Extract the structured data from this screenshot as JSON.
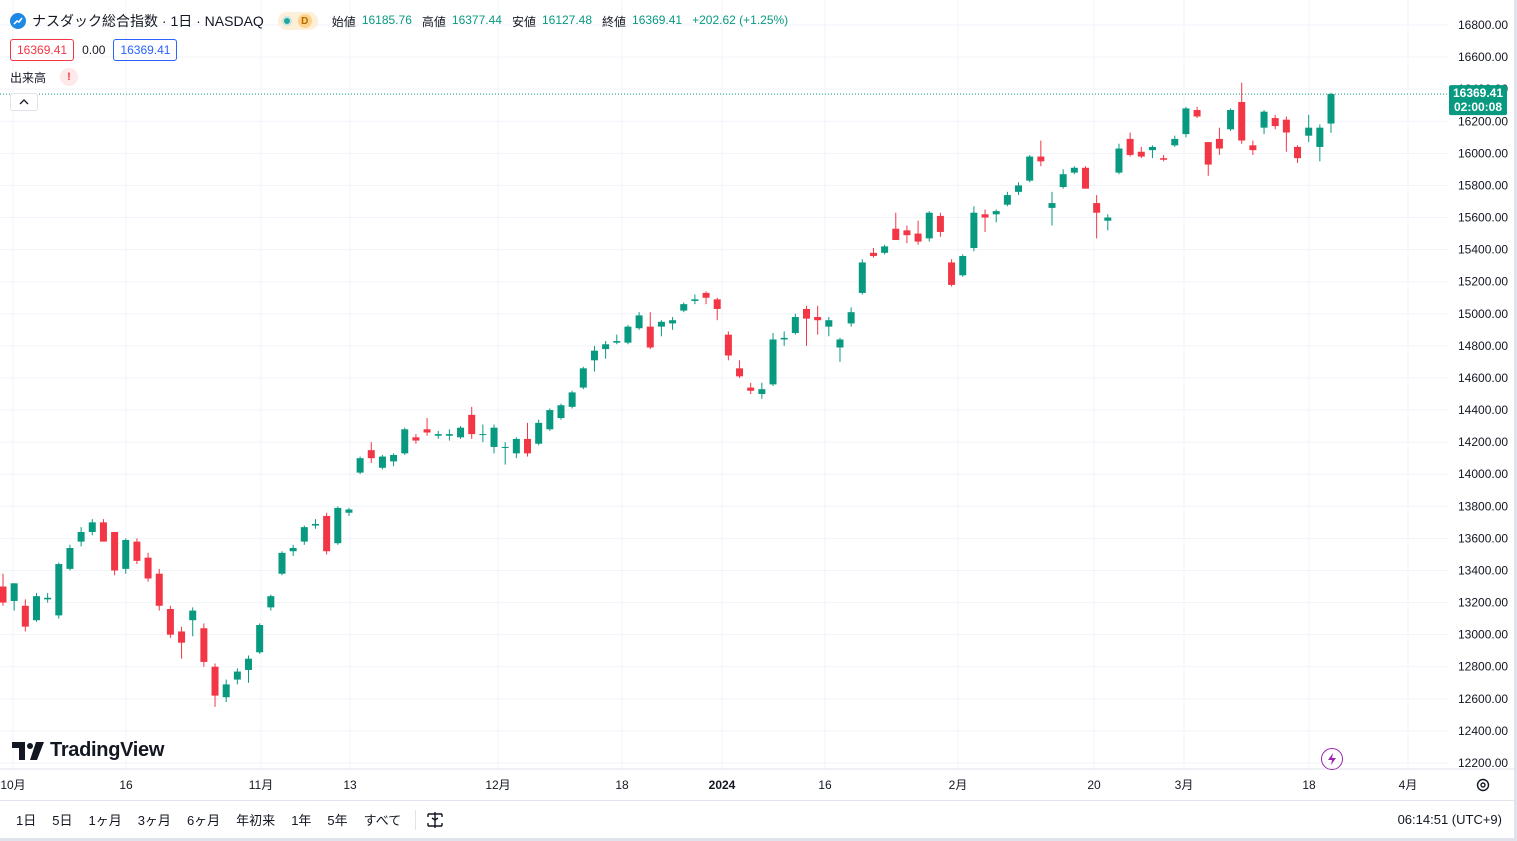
{
  "header": {
    "symbol_title": "ナスダック総合指数 · 1日 · NASDAQ",
    "status_badge": "D",
    "ohlc": {
      "open_label": "始値",
      "open": "16185.76",
      "high_label": "高値",
      "high": "16377.44",
      "low_label": "安値",
      "low": "16127.48",
      "close_label": "終値",
      "close": "16369.41",
      "change": "+202.62 (+1.25%)"
    },
    "sell_price": "16369.41",
    "spread": "0.00",
    "buy_price": "16369.41",
    "volume_label": "出来高",
    "volume_warning": "!"
  },
  "price_axis": {
    "labels": [
      "16800.00",
      "16600.00",
      "16400.00",
      "16200.00",
      "16000.00",
      "15800.00",
      "15600.00",
      "15400.00",
      "15200.00",
      "15000.00",
      "14800.00",
      "14600.00",
      "14400.00",
      "14200.00",
      "14000.00",
      "13800.00",
      "13600.00",
      "13400.00",
      "13200.00",
      "13000.00",
      "12800.00",
      "12600.00",
      "12400.00",
      "12200.00"
    ],
    "last_price": "16369.41",
    "countdown": "02:00:08"
  },
  "time_axis": {
    "labels": [
      "10月",
      "16",
      "11月",
      "13",
      "12月",
      "18",
      "2024",
      "16",
      "2月",
      "20",
      "3月",
      "18",
      "4月"
    ]
  },
  "branding": {
    "logo_text": "TradingView"
  },
  "bottom_bar": {
    "ranges": [
      "1日",
      "5日",
      "1ヶ月",
      "3ヶ月",
      "6ヶ月",
      "年初来",
      "1年",
      "5年",
      "すべて"
    ],
    "clock": "06:14:51 (UTC+9)"
  },
  "colors": {
    "up": "#089981",
    "down": "#f23645",
    "grid": "#f0f3fa",
    "last_line": "#089981"
  },
  "chart_data": {
    "type": "candlestick",
    "title": "ナスダック総合指数",
    "ylim": [
      12200,
      16800
    ],
    "candles": [
      {
        "o": 13300,
        "h": 13380,
        "l": 13180,
        "c": 13200
      },
      {
        "o": 13210,
        "h": 13320,
        "l": 13150,
        "c": 13320
      },
      {
        "o": 13180,
        "h": 13220,
        "l": 13020,
        "c": 13050
      },
      {
        "o": 13090,
        "h": 13260,
        "l": 13080,
        "c": 13240
      },
      {
        "o": 13220,
        "h": 13260,
        "l": 13200,
        "c": 13230
      },
      {
        "o": 13120,
        "h": 13450,
        "l": 13100,
        "c": 13440
      },
      {
        "o": 13410,
        "h": 13560,
        "l": 13400,
        "c": 13540
      },
      {
        "o": 13580,
        "h": 13670,
        "l": 13550,
        "c": 13640
      },
      {
        "o": 13640,
        "h": 13720,
        "l": 13620,
        "c": 13700
      },
      {
        "o": 13700,
        "h": 13720,
        "l": 13580,
        "c": 13580
      },
      {
        "o": 13640,
        "h": 13640,
        "l": 13370,
        "c": 13400
      },
      {
        "o": 13410,
        "h": 13600,
        "l": 13380,
        "c": 13590
      },
      {
        "o": 13580,
        "h": 13600,
        "l": 13440,
        "c": 13460
      },
      {
        "o": 13480,
        "h": 13510,
        "l": 13330,
        "c": 13350
      },
      {
        "o": 13380,
        "h": 13410,
        "l": 13150,
        "c": 13180
      },
      {
        "o": 13160,
        "h": 13180,
        "l": 12980,
        "c": 13000
      },
      {
        "o": 13020,
        "h": 13050,
        "l": 12850,
        "c": 12950
      },
      {
        "o": 13090,
        "h": 13170,
        "l": 12990,
        "c": 13150
      },
      {
        "o": 13040,
        "h": 13070,
        "l": 12800,
        "c": 12830
      },
      {
        "o": 12800,
        "h": 12820,
        "l": 12550,
        "c": 12620
      },
      {
        "o": 12610,
        "h": 12720,
        "l": 12580,
        "c": 12690
      },
      {
        "o": 12720,
        "h": 12790,
        "l": 12690,
        "c": 12770
      },
      {
        "o": 12780,
        "h": 12870,
        "l": 12700,
        "c": 12850
      },
      {
        "o": 12890,
        "h": 13070,
        "l": 12880,
        "c": 13060
      },
      {
        "o": 13170,
        "h": 13250,
        "l": 13150,
        "c": 13240
      },
      {
        "o": 13380,
        "h": 13520,
        "l": 13370,
        "c": 13510
      },
      {
        "o": 13520,
        "h": 13560,
        "l": 13490,
        "c": 13540
      },
      {
        "o": 13580,
        "h": 13680,
        "l": 13560,
        "c": 13670
      },
      {
        "o": 13680,
        "h": 13720,
        "l": 13660,
        "c": 13690
      },
      {
        "o": 13740,
        "h": 13760,
        "l": 13500,
        "c": 13520
      },
      {
        "o": 13570,
        "h": 13800,
        "l": 13560,
        "c": 13790
      },
      {
        "o": 13760,
        "h": 13790,
        "l": 13740,
        "c": 13780
      },
      {
        "o": 14010,
        "h": 14110,
        "l": 14000,
        "c": 14100
      },
      {
        "o": 14150,
        "h": 14200,
        "l": 14070,
        "c": 14100
      },
      {
        "o": 14040,
        "h": 14120,
        "l": 14030,
        "c": 14110
      },
      {
        "o": 14080,
        "h": 14130,
        "l": 14050,
        "c": 14120
      },
      {
        "o": 14130,
        "h": 14290,
        "l": 14120,
        "c": 14280
      },
      {
        "o": 14230,
        "h": 14250,
        "l": 14190,
        "c": 14210
      },
      {
        "o": 14280,
        "h": 14350,
        "l": 14240,
        "c": 14260
      },
      {
        "o": 14240,
        "h": 14270,
        "l": 14220,
        "c": 14250
      },
      {
        "o": 14240,
        "h": 14280,
        "l": 14210,
        "c": 14250
      },
      {
        "o": 14230,
        "h": 14300,
        "l": 14220,
        "c": 14290
      },
      {
        "o": 14370,
        "h": 14420,
        "l": 14220,
        "c": 14250
      },
      {
        "o": 14250,
        "h": 14310,
        "l": 14200,
        "c": 14250
      },
      {
        "o": 14170,
        "h": 14310,
        "l": 14130,
        "c": 14290
      },
      {
        "o": 14170,
        "h": 14200,
        "l": 14060,
        "c": 14170
      },
      {
        "o": 14130,
        "h": 14230,
        "l": 14100,
        "c": 14220
      },
      {
        "o": 14220,
        "h": 14320,
        "l": 14110,
        "c": 14130
      },
      {
        "o": 14190,
        "h": 14340,
        "l": 14180,
        "c": 14320
      },
      {
        "o": 14280,
        "h": 14410,
        "l": 14270,
        "c": 14400
      },
      {
        "o": 14350,
        "h": 14440,
        "l": 14340,
        "c": 14430
      },
      {
        "o": 14420,
        "h": 14520,
        "l": 14410,
        "c": 14510
      },
      {
        "o": 14540,
        "h": 14670,
        "l": 14530,
        "c": 14660
      },
      {
        "o": 14710,
        "h": 14800,
        "l": 14640,
        "c": 14770
      },
      {
        "o": 14780,
        "h": 14830,
        "l": 14720,
        "c": 14810
      },
      {
        "o": 14820,
        "h": 14870,
        "l": 14810,
        "c": 14830
      },
      {
        "o": 14820,
        "h": 14930,
        "l": 14810,
        "c": 14920
      },
      {
        "o": 14910,
        "h": 15010,
        "l": 14900,
        "c": 14990
      },
      {
        "o": 14920,
        "h": 15010,
        "l": 14780,
        "c": 14790
      },
      {
        "o": 14920,
        "h": 14960,
        "l": 14860,
        "c": 14950
      },
      {
        "o": 14940,
        "h": 14980,
        "l": 14900,
        "c": 14960
      },
      {
        "o": 15020,
        "h": 15070,
        "l": 15010,
        "c": 15060
      },
      {
        "o": 15080,
        "h": 15120,
        "l": 15060,
        "c": 15090
      },
      {
        "o": 15130,
        "h": 15140,
        "l": 15060,
        "c": 15100
      },
      {
        "o": 15090,
        "h": 15100,
        "l": 14960,
        "c": 15030
      },
      {
        "o": 14870,
        "h": 14890,
        "l": 14710,
        "c": 14740
      },
      {
        "o": 14660,
        "h": 14710,
        "l": 14600,
        "c": 14610
      },
      {
        "o": 14540,
        "h": 14570,
        "l": 14500,
        "c": 14520
      },
      {
        "o": 14500,
        "h": 14570,
        "l": 14470,
        "c": 14530
      },
      {
        "o": 14560,
        "h": 14880,
        "l": 14550,
        "c": 14840
      },
      {
        "o": 14840,
        "h": 14890,
        "l": 14800,
        "c": 14850
      },
      {
        "o": 14880,
        "h": 15000,
        "l": 14870,
        "c": 14980
      },
      {
        "o": 15030,
        "h": 15050,
        "l": 14800,
        "c": 14970
      },
      {
        "o": 14980,
        "h": 15050,
        "l": 14870,
        "c": 14960
      },
      {
        "o": 14920,
        "h": 14980,
        "l": 14860,
        "c": 14960
      },
      {
        "o": 14790,
        "h": 14850,
        "l": 14700,
        "c": 14840
      },
      {
        "o": 14940,
        "h": 15040,
        "l": 14920,
        "c": 15010
      },
      {
        "o": 15130,
        "h": 15340,
        "l": 15120,
        "c": 15320
      },
      {
        "o": 15380,
        "h": 15410,
        "l": 15350,
        "c": 15360
      },
      {
        "o": 15380,
        "h": 15430,
        "l": 15370,
        "c": 15420
      },
      {
        "o": 15530,
        "h": 15630,
        "l": 15460,
        "c": 15460
      },
      {
        "o": 15520,
        "h": 15550,
        "l": 15440,
        "c": 15490
      },
      {
        "o": 15500,
        "h": 15580,
        "l": 15430,
        "c": 15450
      },
      {
        "o": 15470,
        "h": 15640,
        "l": 15450,
        "c": 15630
      },
      {
        "o": 15610,
        "h": 15630,
        "l": 15480,
        "c": 15510
      },
      {
        "o": 15320,
        "h": 15340,
        "l": 15170,
        "c": 15180
      },
      {
        "o": 15240,
        "h": 15370,
        "l": 15230,
        "c": 15360
      },
      {
        "o": 15410,
        "h": 15670,
        "l": 15390,
        "c": 15630
      },
      {
        "o": 15620,
        "h": 15650,
        "l": 15510,
        "c": 15600
      },
      {
        "o": 15620,
        "h": 15650,
        "l": 15570,
        "c": 15640
      },
      {
        "o": 15680,
        "h": 15760,
        "l": 15670,
        "c": 15740
      },
      {
        "o": 15760,
        "h": 15820,
        "l": 15740,
        "c": 15800
      },
      {
        "o": 15830,
        "h": 15990,
        "l": 15820,
        "c": 15980
      },
      {
        "o": 15980,
        "h": 16080,
        "l": 15920,
        "c": 15950
      },
      {
        "o": 15660,
        "h": 15760,
        "l": 15550,
        "c": 15690
      },
      {
        "o": 15790,
        "h": 15900,
        "l": 15780,
        "c": 15870
      },
      {
        "o": 15880,
        "h": 15920,
        "l": 15870,
        "c": 15910
      },
      {
        "o": 15910,
        "h": 15920,
        "l": 15780,
        "c": 15780
      },
      {
        "o": 15690,
        "h": 15740,
        "l": 15470,
        "c": 15630
      },
      {
        "o": 15580,
        "h": 15620,
        "l": 15520,
        "c": 15600
      },
      {
        "o": 15880,
        "h": 16060,
        "l": 15870,
        "c": 16030
      },
      {
        "o": 16090,
        "h": 16130,
        "l": 15980,
        "c": 15990
      },
      {
        "o": 16010,
        "h": 16040,
        "l": 15970,
        "c": 15980
      },
      {
        "o": 16020,
        "h": 16050,
        "l": 15970,
        "c": 16040
      },
      {
        "o": 15970,
        "h": 15990,
        "l": 15950,
        "c": 15960
      },
      {
        "o": 16050,
        "h": 16110,
        "l": 16040,
        "c": 16090
      },
      {
        "o": 16120,
        "h": 16290,
        "l": 16100,
        "c": 16280
      },
      {
        "o": 16270,
        "h": 16290,
        "l": 16220,
        "c": 16230
      },
      {
        "o": 16070,
        "h": 16070,
        "l": 15860,
        "c": 15930
      },
      {
        "o": 16090,
        "h": 16160,
        "l": 15990,
        "c": 16030
      },
      {
        "o": 16150,
        "h": 16280,
        "l": 16140,
        "c": 16270
      },
      {
        "o": 16320,
        "h": 16440,
        "l": 16060,
        "c": 16080
      },
      {
        "o": 16050,
        "h": 16080,
        "l": 15990,
        "c": 16020
      },
      {
        "o": 16160,
        "h": 16270,
        "l": 16120,
        "c": 16260
      },
      {
        "o": 16220,
        "h": 16240,
        "l": 16150,
        "c": 16170
      },
      {
        "o": 16210,
        "h": 16230,
        "l": 16010,
        "c": 16130
      },
      {
        "o": 16040,
        "h": 16050,
        "l": 15940,
        "c": 15970
      },
      {
        "o": 16110,
        "h": 16240,
        "l": 16070,
        "c": 16160
      },
      {
        "o": 16040,
        "h": 16180,
        "l": 15950,
        "c": 16160
      },
      {
        "o": 16185.76,
        "h": 16377.44,
        "l": 16127.48,
        "c": 16369.41
      }
    ]
  }
}
